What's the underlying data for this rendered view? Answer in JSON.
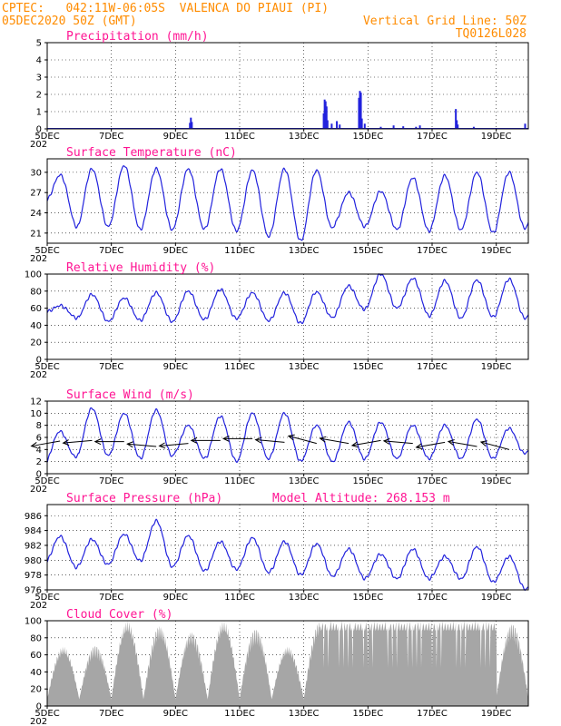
{
  "header": {
    "line1_left": "CPTEC:   042:11W-06:05S  VALENCA DO PIAUI (PI)",
    "line2_left": "05DEC2020 50Z (GMT)",
    "line2_right": "Vertical Grid Line: 50Z",
    "line3_right": "TQ0126L028"
  },
  "colors": {
    "header": "#ff8c00",
    "panel_title": "#ff1493",
    "series": "#2222dd",
    "cloud": "#a6a6a6"
  },
  "x_axis": {
    "start_day": 5,
    "end_day": 20.0,
    "tick_days": [
      5,
      7,
      9,
      11,
      13,
      15,
      17,
      19
    ],
    "tick_labels": [
      "5DEC",
      "7DEC",
      "9DEC",
      "11DEC",
      "13DEC",
      "15DEC",
      "17DEC",
      "19DEC"
    ],
    "year_label": "202"
  },
  "chart_data": [
    {
      "id": "precip",
      "type": "bar",
      "title": "Precipitation (mm/h)",
      "ylim": [
        0,
        5
      ],
      "yticks": [
        0,
        1,
        2,
        3,
        4,
        5
      ],
      "baseline": 0.05,
      "events": [
        {
          "day": 9.45,
          "value": 0.35
        },
        {
          "day": 9.48,
          "value": 0.65
        },
        {
          "day": 9.51,
          "value": 0.4
        },
        {
          "day": 13.62,
          "value": 0.9
        },
        {
          "day": 13.65,
          "value": 1.7
        },
        {
          "day": 13.68,
          "value": 1.6
        },
        {
          "day": 13.71,
          "value": 1.3
        },
        {
          "day": 13.74,
          "value": 0.5
        },
        {
          "day": 13.87,
          "value": 0.3
        },
        {
          "day": 14.03,
          "value": 0.45
        },
        {
          "day": 14.12,
          "value": 0.25
        },
        {
          "day": 14.72,
          "value": 1.8
        },
        {
          "day": 14.75,
          "value": 2.2
        },
        {
          "day": 14.78,
          "value": 2.1
        },
        {
          "day": 14.81,
          "value": 0.6
        },
        {
          "day": 14.9,
          "value": 0.3
        },
        {
          "day": 15.4,
          "value": 0.12
        },
        {
          "day": 15.8,
          "value": 0.2
        },
        {
          "day": 16.1,
          "value": 0.15
        },
        {
          "day": 16.5,
          "value": 0.12
        },
        {
          "day": 16.62,
          "value": 0.2
        },
        {
          "day": 17.74,
          "value": 1.15
        },
        {
          "day": 17.77,
          "value": 0.5
        },
        {
          "day": 17.8,
          "value": 0.25
        },
        {
          "day": 18.3,
          "value": 0.12
        },
        {
          "day": 19.9,
          "value": 0.3
        }
      ]
    },
    {
      "id": "temp",
      "type": "line",
      "title": "Surface Temperature (nC)",
      "ylim": [
        19.5,
        32
      ],
      "yticks": [
        21,
        24,
        27,
        30
      ],
      "min": [
        25.5,
        21.6,
        22.0,
        21.5,
        21.5,
        21.6,
        21.3,
        20.4,
        19.8,
        22.0,
        22.0,
        21.5,
        21.3,
        21.5,
        21.0,
        21.8
      ],
      "max": [
        29.6,
        30.5,
        31.0,
        30.5,
        30.5,
        30.5,
        30.3,
        30.5,
        30.3,
        27.0,
        27.2,
        29.2,
        29.5,
        30.0,
        30.0,
        30.3
      ]
    },
    {
      "id": "rh",
      "type": "line",
      "title": "Relative Humidity (%)",
      "ylim": [
        0,
        100
      ],
      "yticks": [
        0,
        20,
        40,
        60,
        80,
        100
      ],
      "max": [
        63,
        76,
        72,
        78,
        80,
        82,
        78,
        78,
        79,
        86,
        100,
        95,
        92,
        93,
        94,
        88
      ],
      "min": [
        55,
        48,
        44,
        46,
        44,
        47,
        48,
        45,
        42,
        50,
        60,
        60,
        50,
        48,
        50,
        48
      ]
    },
    {
      "id": "wind",
      "type": "line",
      "title": "Surface Wind (m/s)",
      "ylim": [
        0,
        12
      ],
      "yticks": [
        0,
        2,
        4,
        6,
        8,
        10,
        12
      ],
      "max": [
        7.0,
        10.8,
        10.0,
        10.5,
        8.0,
        9.5,
        10.0,
        10.0,
        8.0,
        8.5,
        8.5,
        8.0,
        8.0,
        9.0,
        7.5,
        7.0
      ],
      "min": [
        1.5,
        3.0,
        3.0,
        2.5,
        3.0,
        2.5,
        2.0,
        2.5,
        2.0,
        2.0,
        2.5,
        2.5,
        2.5,
        2.5,
        2.5,
        3.5
      ],
      "barbs": [
        {
          "day": 5.4,
          "value": 5.4,
          "dir": -10
        },
        {
          "day": 6.4,
          "value": 5.5,
          "dir": -5
        },
        {
          "day": 7.4,
          "value": 5.3,
          "dir": 0
        },
        {
          "day": 8.4,
          "value": 4.5,
          "dir": 5
        },
        {
          "day": 9.4,
          "value": 5.0,
          "dir": -5
        },
        {
          "day": 10.4,
          "value": 5.5,
          "dir": 0
        },
        {
          "day": 11.4,
          "value": 5.8,
          "dir": 0
        },
        {
          "day": 12.4,
          "value": 5.2,
          "dir": 5
        },
        {
          "day": 13.4,
          "value": 5.0,
          "dir": 15
        },
        {
          "day": 14.4,
          "value": 5.0,
          "dir": 10
        },
        {
          "day": 15.4,
          "value": 5.5,
          "dir": -10
        },
        {
          "day": 16.4,
          "value": 5.0,
          "dir": 5
        },
        {
          "day": 17.4,
          "value": 5.2,
          "dir": -10
        },
        {
          "day": 18.4,
          "value": 4.5,
          "dir": 10
        },
        {
          "day": 19.4,
          "value": 4.0,
          "dir": 15
        }
      ]
    },
    {
      "id": "pres",
      "type": "line",
      "title": "Surface Pressure (hPa)",
      "annotation": "Model Altitude: 268.153 m",
      "ylim": [
        976,
        987.5
      ],
      "yticks": [
        976,
        978,
        980,
        982,
        984,
        986
      ],
      "max": [
        983.2,
        982.8,
        983.5,
        985.3,
        983.3,
        982.5,
        983.0,
        982.5,
        982.2,
        981.5,
        980.8,
        981.5,
        980.5,
        981.8,
        980.5,
        979.5
      ],
      "min": [
        979.5,
        979.0,
        979.5,
        980.0,
        979.0,
        978.5,
        978.8,
        978.3,
        978.0,
        977.8,
        977.5,
        977.5,
        977.5,
        977.5,
        977.0,
        976.0
      ]
    },
    {
      "id": "cloud",
      "type": "area",
      "title": "Cloud Cover (%)",
      "ylim": [
        0,
        100
      ],
      "yticks": [
        0,
        20,
        40,
        60,
        80,
        100
      ],
      "daily_peak": [
        70,
        72,
        100,
        95,
        88,
        100,
        92,
        70,
        100,
        100,
        100,
        100,
        100,
        100,
        98
      ]
    }
  ]
}
